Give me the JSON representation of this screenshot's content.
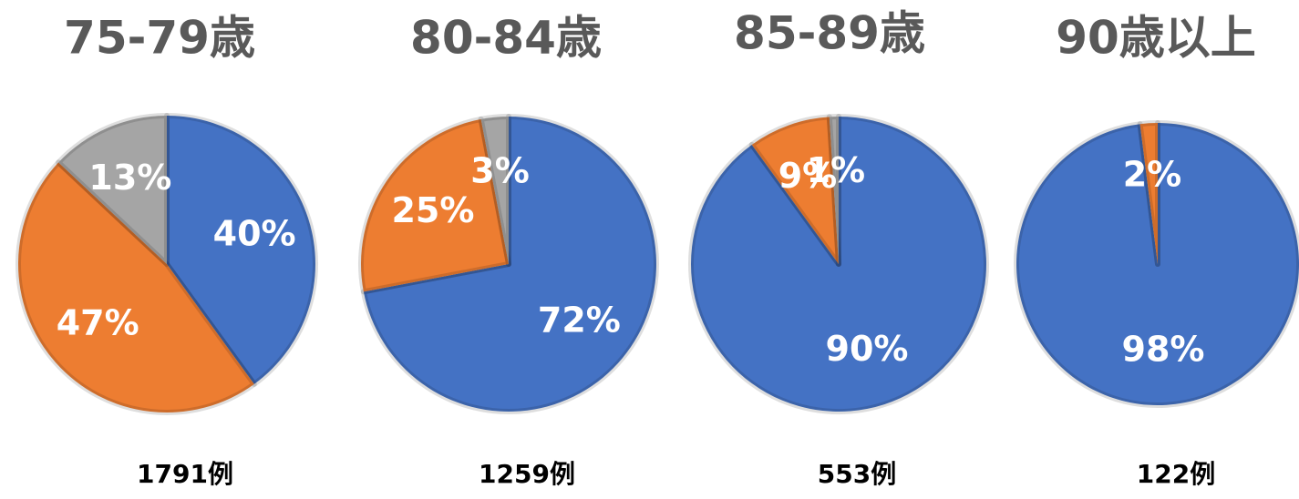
{
  "chart_data": [
    {
      "type": "pie",
      "title": "75-79歳",
      "values": [
        40,
        47,
        13
      ],
      "value_labels": [
        "40%",
        "47%",
        "13%"
      ],
      "colors": [
        "#4472c4",
        "#ed7d31",
        "#a5a5a5"
      ],
      "note": "1791例"
    },
    {
      "type": "pie",
      "title": "80-84歳",
      "values": [
        72,
        25,
        3
      ],
      "value_labels": [
        "72%",
        "25%",
        "3%"
      ],
      "colors": [
        "#4472c4",
        "#ed7d31",
        "#a5a5a5"
      ],
      "note": "1259例"
    },
    {
      "type": "pie",
      "title": "85-89歳",
      "values": [
        90,
        9,
        1
      ],
      "value_labels": [
        "90%",
        "9%",
        "1%"
      ],
      "colors": [
        "#4472c4",
        "#ed7d31",
        "#a5a5a5"
      ],
      "note": "553例"
    },
    {
      "type": "pie",
      "title": "90歳以上",
      "values": [
        98,
        2
      ],
      "value_labels": [
        "98%",
        "2%"
      ],
      "colors": [
        "#4472c4",
        "#ed7d31"
      ],
      "note": "122例"
    }
  ]
}
